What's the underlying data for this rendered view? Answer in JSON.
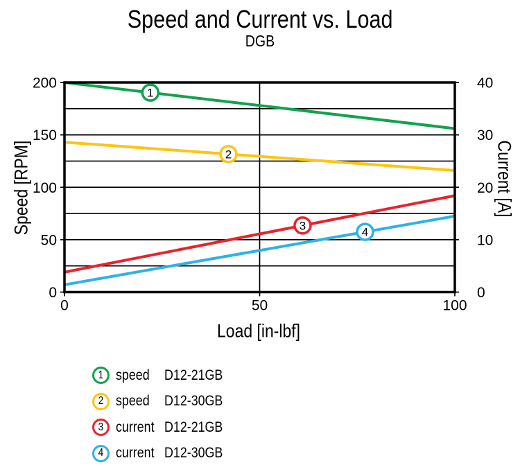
{
  "title": "Speed and Current vs. Load",
  "subtitle": "DGB",
  "chart_data": {
    "type": "line",
    "title": "Speed and Current vs. Load",
    "subtitle": "DGB",
    "xlabel": "Load [in-lbf]",
    "ylabel_left": "Speed [RPM]",
    "ylabel_right": "Current [A]",
    "xlim": [
      0,
      100
    ],
    "ylim_left": [
      0,
      200
    ],
    "ylim_right": [
      0,
      40
    ],
    "x_ticks": [
      0,
      50,
      100
    ],
    "y_ticks_left": [
      0,
      50,
      100,
      150,
      200
    ],
    "y_ticks_right": [
      0,
      10,
      20,
      30,
      40
    ],
    "grid_interval_rpm": 25,
    "grid": true,
    "legend_position": "bottom-left",
    "series": [
      {
        "id": "1",
        "name": "speed D12-21GB",
        "axis": "left",
        "unit": "RPM",
        "color": "#12A24E",
        "x": [
          0,
          100
        ],
        "y": [
          200,
          156
        ],
        "marker_at_x": 22
      },
      {
        "id": "2",
        "name": "speed D12-30GB",
        "axis": "left",
        "unit": "RPM",
        "color": "#FDC513",
        "x": [
          0,
          100
        ],
        "y": [
          143,
          116
        ],
        "marker_at_x": 42
      },
      {
        "id": "3",
        "name": "current D12-21GB",
        "axis": "right",
        "unit": "A",
        "color": "#E8232D",
        "x": [
          0,
          100
        ],
        "y": [
          3.8,
          18.4
        ],
        "marker_at_x": 61
      },
      {
        "id": "4",
        "name": "current D12-30GB",
        "axis": "right",
        "unit": "A",
        "color": "#2EB2E6",
        "x": [
          0,
          100
        ],
        "y": [
          1.4,
          14.5
        ],
        "marker_at_x": 77
      }
    ]
  },
  "legend": {
    "items": [
      {
        "number": "1",
        "kind": "speed",
        "model": "D12-21GB",
        "color": "#12A24E"
      },
      {
        "number": "2",
        "kind": "speed",
        "model": "D12-30GB",
        "color": "#FDC513"
      },
      {
        "number": "3",
        "kind": "current",
        "model": "D12-21GB",
        "color": "#E8232D"
      },
      {
        "number": "4",
        "kind": "current",
        "model": "D12-30GB",
        "color": "#2EB2E6"
      }
    ]
  }
}
